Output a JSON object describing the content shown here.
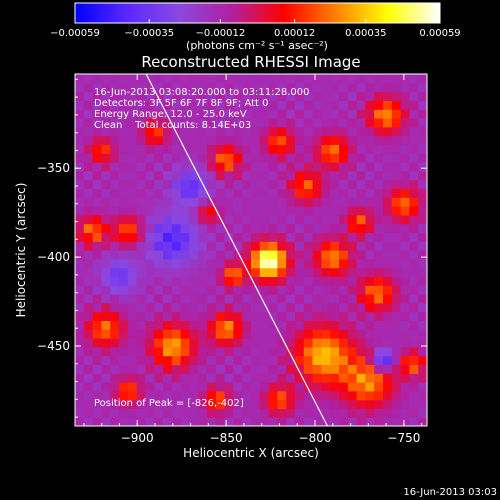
{
  "chart_data": {
    "type": "heatmap",
    "title": "Reconstructed RHESSI Image",
    "xlabel": "Heliocentric X (arcsec)",
    "ylabel": "Heliocentric Y (arcsec)",
    "xlim": [
      -935,
      -737
    ],
    "ylim": [
      -495,
      -297
    ],
    "xticks": [
      -900,
      -850,
      -800,
      -750
    ],
    "xtick_labels": [
      "−900",
      "−850",
      "−800",
      "−750"
    ],
    "yticks": [
      -450,
      -400,
      -350
    ],
    "ytick_labels": [
      "−450",
      "−400",
      "−350"
    ],
    "colorbar": {
      "range": [
        -0.00059,
        0.00059
      ],
      "ticks": [
        -0.00059,
        -0.00035,
        -0.00012,
        0.00012,
        0.00035,
        0.00059
      ],
      "tick_labels": [
        "−0.00059",
        "−0.00035",
        "−0.00012",
        "0.00012",
        "0.00035",
        "0.00059"
      ],
      "units_label": "(photons cm⁻² s⁻¹ asec⁻²)",
      "colors": [
        "#0000ff",
        "#5a28ff",
        "#8a48e0",
        "#b020a0",
        "#ff0000",
        "#ff8000",
        "#ffff00",
        "#ffffff"
      ]
    },
    "annotations": [
      "16-Jun-2013 03:08:20.000 to 03:11:28.000",
      "Detectors: 3F 5F 6F 7F 8F 9F; Att 0",
      "Energy Range: 12.0 - 25.0 keV",
      "Clean    Total counts: 8.14E+03"
    ],
    "peak_label": "Position of Peak = [-826,-402]",
    "peak": [
      -826,
      -402
    ],
    "limb_line": [
      [
        -895,
        -297
      ],
      [
        -793,
        -495
      ]
    ],
    "sources": [
      {
        "x": -826,
        "y": -402,
        "r": 10,
        "v": 1.0
      },
      {
        "x": -846,
        "y": -410,
        "r": 6,
        "v": 0.55
      },
      {
        "x": -880,
        "y": -450,
        "r": 12,
        "v": 0.6
      },
      {
        "x": -918,
        "y": -440,
        "r": 10,
        "v": 0.5
      },
      {
        "x": -850,
        "y": -440,
        "r": 9,
        "v": 0.55
      },
      {
        "x": -795,
        "y": -455,
        "r": 16,
        "v": 0.65
      },
      {
        "x": -770,
        "y": -470,
        "r": 14,
        "v": 0.55
      },
      {
        "x": -790,
        "y": -400,
        "r": 10,
        "v": 0.55
      },
      {
        "x": -765,
        "y": -420,
        "r": 10,
        "v": 0.5
      },
      {
        "x": -760,
        "y": -320,
        "r": 10,
        "v": 0.55
      },
      {
        "x": -790,
        "y": -340,
        "r": 9,
        "v": 0.5
      },
      {
        "x": -805,
        "y": -360,
        "r": 9,
        "v": 0.45
      },
      {
        "x": -820,
        "y": -335,
        "r": 8,
        "v": 0.45
      },
      {
        "x": -850,
        "y": -345,
        "r": 8,
        "v": 0.5
      },
      {
        "x": -925,
        "y": -385,
        "r": 8,
        "v": 0.5
      },
      {
        "x": -905,
        "y": -385,
        "r": 8,
        "v": 0.45
      },
      {
        "x": -890,
        "y": -330,
        "r": 7,
        "v": 0.4
      },
      {
        "x": -920,
        "y": -340,
        "r": 7,
        "v": 0.4
      },
      {
        "x": -905,
        "y": -475,
        "r": 7,
        "v": 0.45
      },
      {
        "x": -855,
        "y": -480,
        "r": 7,
        "v": 0.45
      },
      {
        "x": -820,
        "y": -480,
        "r": 8,
        "v": 0.45
      },
      {
        "x": -750,
        "y": -370,
        "r": 9,
        "v": 0.5
      },
      {
        "x": -745,
        "y": -460,
        "r": 7,
        "v": 0.45
      },
      {
        "x": -775,
        "y": -380,
        "r": 7,
        "v": 0.45
      },
      {
        "x": -860,
        "y": -375,
        "r": 6,
        "v": 0.35
      }
    ],
    "negative_regions": [
      {
        "x": -880,
        "y": -390,
        "r": 14,
        "v": -0.4
      },
      {
        "x": -870,
        "y": -360,
        "r": 10,
        "v": -0.35
      },
      {
        "x": -762,
        "y": -458,
        "r": 6,
        "v": -0.6
      },
      {
        "x": -910,
        "y": -410,
        "r": 10,
        "v": -0.3
      }
    ]
  },
  "footer": {
    "timestamp": "16-Jun-2013 03:03"
  }
}
